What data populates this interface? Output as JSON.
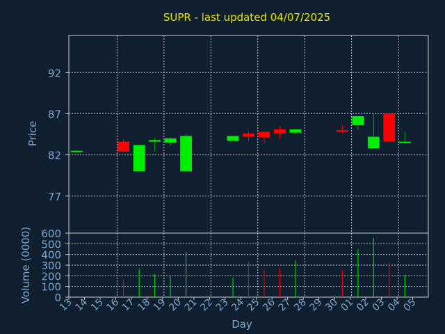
{
  "colors": {
    "background": "#0f1f30",
    "title": "#e6e600",
    "axis_text": "#7fa7cf",
    "grid": "#c8c8c8",
    "up": "#00ee00",
    "down": "#ff0000",
    "wick_up": "#00aa00",
    "wick_down": "#ff0000"
  },
  "chart_data": [
    {
      "type": "candlestick",
      "title": "SUPR - last updated 04/07/2025",
      "xlabel": "",
      "ylabel": "Price",
      "ylim": [
        72.5,
        96.5
      ],
      "yticks": [
        77,
        82,
        87,
        92
      ],
      "grid": true,
      "categories": [
        "13",
        "14",
        "15",
        "16",
        "17",
        "18",
        "19",
        "20",
        "21",
        "22",
        "23",
        "24",
        "25",
        "26",
        "27",
        "28",
        "29",
        "30",
        "01",
        "02",
        "03",
        "04",
        "05"
      ],
      "candles": [
        {
          "day": "13",
          "open": 82.5,
          "high": 82.6,
          "low": 82.4,
          "close": 82.5
        },
        {
          "day": "16",
          "open": 83.6,
          "high": 83.9,
          "low": 82.4,
          "close": 82.4
        },
        {
          "day": "17",
          "open": 80.0,
          "high": 83.2,
          "low": 80.0,
          "close": 83.2
        },
        {
          "day": "18",
          "open": 83.6,
          "high": 84.1,
          "low": 82.4,
          "close": 83.8
        },
        {
          "day": "19",
          "open": 83.5,
          "high": 84.1,
          "low": 83.1,
          "close": 84.0
        },
        {
          "day": "20",
          "open": 80.0,
          "high": 84.6,
          "low": 80.0,
          "close": 84.3
        },
        {
          "day": "23",
          "open": 83.7,
          "high": 84.3,
          "low": 83.7,
          "close": 84.3
        },
        {
          "day": "24",
          "open": 84.6,
          "high": 84.8,
          "low": 83.7,
          "close": 84.2
        },
        {
          "day": "25",
          "open": 84.8,
          "high": 84.8,
          "low": 83.4,
          "close": 84.1
        },
        {
          "day": "26",
          "open": 85.1,
          "high": 85.5,
          "low": 83.9,
          "close": 84.6
        },
        {
          "day": "27",
          "open": 84.7,
          "high": 85.1,
          "low": 84.5,
          "close": 85.1
        },
        {
          "day": "30",
          "open": 85.0,
          "high": 85.6,
          "low": 84.6,
          "close": 84.8
        },
        {
          "day": "01",
          "open": 85.6,
          "high": 86.7,
          "low": 85.1,
          "close": 86.7
        },
        {
          "day": "02",
          "open": 82.8,
          "high": 87.0,
          "low": 82.8,
          "close": 84.2
        },
        {
          "day": "03",
          "open": 87.0,
          "high": 87.0,
          "low": 83.6,
          "close": 83.6
        },
        {
          "day": "04",
          "open": 83.5,
          "high": 84.8,
          "low": 83.4,
          "close": 83.6
        }
      ]
    },
    {
      "type": "bar",
      "xlabel": "Day",
      "ylabel": "Volume (0000)",
      "ylim": [
        0,
        600
      ],
      "yticks": [
        0,
        100,
        200,
        300,
        400,
        500,
        600
      ],
      "grid": true,
      "categories": [
        "13",
        "14",
        "15",
        "16",
        "17",
        "18",
        "19",
        "20",
        "21",
        "22",
        "23",
        "24",
        "25",
        "26",
        "27",
        "28",
        "29",
        "30",
        "01",
        "02",
        "03",
        "04",
        "05"
      ],
      "bars": [
        {
          "day": "16",
          "value": 165,
          "direction": "down"
        },
        {
          "day": "17",
          "value": 265,
          "direction": "up"
        },
        {
          "day": "18",
          "value": 215,
          "direction": "up"
        },
        {
          "day": "19",
          "value": 195,
          "direction": "up"
        },
        {
          "day": "20",
          "value": 425,
          "direction": "up"
        },
        {
          "day": "23",
          "value": 185,
          "direction": "up"
        },
        {
          "day": "24",
          "value": 330,
          "direction": "down"
        },
        {
          "day": "25",
          "value": 255,
          "direction": "down"
        },
        {
          "day": "26",
          "value": 275,
          "direction": "down"
        },
        {
          "day": "27",
          "value": 345,
          "direction": "up"
        },
        {
          "day": "30",
          "value": 255,
          "direction": "down"
        },
        {
          "day": "01",
          "value": 450,
          "direction": "up"
        },
        {
          "day": "02",
          "value": 555,
          "direction": "up"
        },
        {
          "day": "03",
          "value": 320,
          "direction": "down"
        },
        {
          "day": "04",
          "value": 210,
          "direction": "up"
        }
      ]
    }
  ]
}
